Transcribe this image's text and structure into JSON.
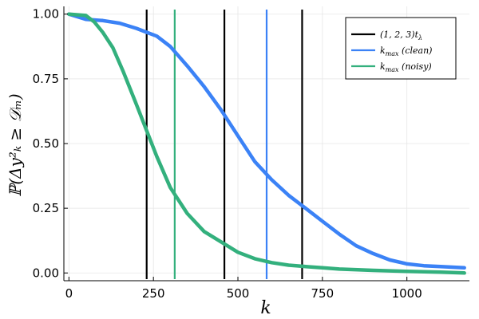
{
  "chart_data": {
    "type": "line",
    "title": "",
    "xlabel": "k",
    "ylabel": "ℙ(Δy²ₖ ≥ 𝒟ₘ)",
    "xlim": [
      -15,
      1185
    ],
    "ylim": [
      -0.03,
      1.03
    ],
    "x_ticks": [
      0,
      250,
      500,
      750,
      1000
    ],
    "x_tick_labels": [
      "0",
      "250",
      "500",
      "750",
      "1000"
    ],
    "y_ticks": [
      0,
      0.25,
      0.5,
      0.75,
      1.0
    ],
    "y_tick_labels": [
      "0.00",
      "0.25",
      "0.50",
      "0.75",
      "1.00"
    ],
    "grid": true,
    "legend_position": "top-right",
    "series": [
      {
        "name": "k_max (clean)",
        "label_main": "k",
        "label_sub": "max",
        "label_paren": "(clean)",
        "color": "#3b82f6",
        "x": [
          0,
          50,
          100,
          150,
          200,
          230,
          260,
          300,
          350,
          400,
          450,
          500,
          550,
          600,
          650,
          700,
          750,
          800,
          850,
          900,
          950,
          1000,
          1050,
          1100,
          1170
        ],
        "y": [
          1.0,
          0.98,
          0.975,
          0.965,
          0.945,
          0.93,
          0.915,
          0.875,
          0.8,
          0.72,
          0.63,
          0.53,
          0.43,
          0.36,
          0.3,
          0.25,
          0.2,
          0.15,
          0.105,
          0.075,
          0.05,
          0.035,
          0.028,
          0.025,
          0.02
        ]
      },
      {
        "name": "k_max (noisy)",
        "label_main": "k",
        "label_sub": "max",
        "label_paren": "(noisy)",
        "color": "#33b07d",
        "x": [
          0,
          50,
          75,
          100,
          130,
          160,
          200,
          230,
          260,
          300,
          350,
          400,
          450,
          500,
          550,
          600,
          650,
          700,
          750,
          800,
          900,
          1000,
          1100,
          1170
        ],
        "y": [
          1.0,
          0.995,
          0.97,
          0.93,
          0.87,
          0.78,
          0.65,
          0.55,
          0.45,
          0.33,
          0.23,
          0.16,
          0.12,
          0.08,
          0.055,
          0.04,
          0.03,
          0.025,
          0.02,
          0.015,
          0.01,
          0.006,
          0.003,
          0.0
        ]
      }
    ],
    "vlines": [
      {
        "name": "(1,2,3)t_λ",
        "color": "#000000",
        "x": [
          230,
          460,
          690
        ]
      },
      {
        "name": "k_max (clean)",
        "color": "#3b82f6",
        "x": [
          585
        ]
      },
      {
        "name": "k_max (noisy)",
        "color": "#33b07d",
        "x": [
          313
        ]
      }
    ],
    "legend": [
      {
        "main": "(1, 2, 3)t",
        "sub": "λ",
        "paren": "",
        "color": "#000000"
      },
      {
        "main": "k",
        "sub": "max",
        "paren": "(clean)",
        "color": "#3b82f6"
      },
      {
        "main": "k",
        "sub": "max",
        "paren": "(noisy)",
        "color": "#33b07d"
      }
    ]
  }
}
